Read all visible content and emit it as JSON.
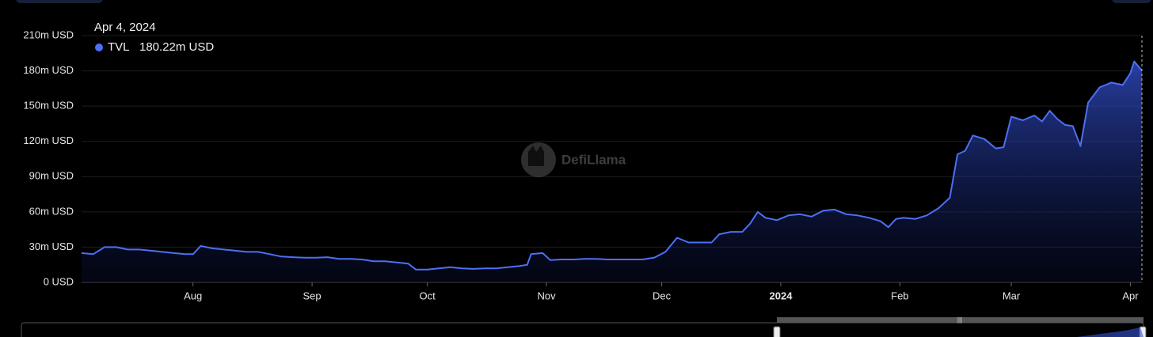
{
  "chart_data": {
    "type": "area",
    "watermark": "DefiLlama",
    "tooltip": {
      "date": "Apr 4, 2024",
      "value_label": "180.22m USD"
    },
    "x": [
      "2023-07-03",
      "2023-07-06",
      "2023-07-09",
      "2023-07-12",
      "2023-07-15",
      "2023-07-18",
      "2023-07-21",
      "2023-07-24",
      "2023-07-27",
      "2023-07-30",
      "2023-08-01",
      "2023-08-03",
      "2023-08-06",
      "2023-08-09",
      "2023-08-12",
      "2023-08-15",
      "2023-08-18",
      "2023-08-21",
      "2023-08-24",
      "2023-08-27",
      "2023-08-30",
      "2023-09-02",
      "2023-09-05",
      "2023-09-08",
      "2023-09-11",
      "2023-09-14",
      "2023-09-17",
      "2023-09-20",
      "2023-09-23",
      "2023-09-26",
      "2023-09-28",
      "2023-10-01",
      "2023-10-04",
      "2023-10-07",
      "2023-10-10",
      "2023-10-13",
      "2023-10-16",
      "2023-10-19",
      "2023-10-22",
      "2023-10-25",
      "2023-10-27",
      "2023-10-28",
      "2023-10-31",
      "2023-11-02",
      "2023-11-05",
      "2023-11-08",
      "2023-11-11",
      "2023-11-14",
      "2023-11-17",
      "2023-11-20",
      "2023-11-23",
      "2023-11-26",
      "2023-11-29",
      "2023-12-02",
      "2023-12-05",
      "2023-12-08",
      "2023-12-11",
      "2023-12-14",
      "2023-12-16",
      "2023-12-19",
      "2023-12-22",
      "2023-12-24",
      "2023-12-26",
      "2023-12-28",
      "2023-12-31",
      "2024-01-03",
      "2024-01-06",
      "2024-01-09",
      "2024-01-12",
      "2024-01-15",
      "2024-01-18",
      "2024-01-21",
      "2024-01-24",
      "2024-01-27",
      "2024-01-29",
      "2024-01-31",
      "2024-02-02",
      "2024-02-05",
      "2024-02-08",
      "2024-02-11",
      "2024-02-14",
      "2024-02-16",
      "2024-02-18",
      "2024-02-20",
      "2024-02-23",
      "2024-02-26",
      "2024-02-28",
      "2024-03-01",
      "2024-03-04",
      "2024-03-07",
      "2024-03-09",
      "2024-03-11",
      "2024-03-13",
      "2024-03-15",
      "2024-03-17",
      "2024-03-19",
      "2024-03-21",
      "2024-03-24",
      "2024-03-27",
      "2024-03-30",
      "2024-04-01",
      "2024-04-02",
      "2024-04-04"
    ],
    "series": [
      {
        "name": "TVL",
        "color": "#4d6ff5",
        "values": [
          25,
          24,
          30,
          30,
          28,
          28,
          27,
          26,
          25,
          24,
          24,
          31,
          29,
          28,
          27,
          26,
          26,
          24,
          22,
          21.5,
          21,
          21,
          21.5,
          20,
          20,
          19.5,
          18,
          18,
          17,
          16,
          11,
          11,
          12,
          13,
          12,
          11.5,
          12,
          12,
          13,
          14,
          15,
          24,
          25,
          19,
          19.5,
          19.5,
          20,
          20,
          19.5,
          19.5,
          19.5,
          19.5,
          21,
          26,
          38,
          34,
          34,
          34,
          41,
          43,
          43,
          50,
          60,
          55,
          53,
          57,
          58,
          56,
          61,
          62,
          58,
          57,
          55,
          52,
          47,
          54,
          55,
          54,
          57,
          63,
          72,
          109,
          112,
          125,
          122,
          114,
          115,
          141,
          138,
          142,
          137,
          146,
          139,
          134,
          133,
          116,
          153,
          166,
          170,
          168,
          178,
          188,
          180.22
        ]
      }
    ],
    "xlim": [
      "2023-07-03",
      "2024-04-04"
    ],
    "xticks": [
      {
        "value": "2023-08-01",
        "label": "Aug"
      },
      {
        "value": "2023-09-01",
        "label": "Sep"
      },
      {
        "value": "2023-10-01",
        "label": "Oct"
      },
      {
        "value": "2023-11-01",
        "label": "Nov"
      },
      {
        "value": "2023-12-01",
        "label": "Dec"
      },
      {
        "value": "2024-01-01",
        "label": "2024"
      },
      {
        "value": "2024-02-01",
        "label": "Feb"
      },
      {
        "value": "2024-03-01",
        "label": "Mar"
      },
      {
        "value": "2024-04-01",
        "label": "Apr"
      }
    ],
    "ylim": [
      0,
      210
    ],
    "yticks": [
      {
        "value": 0,
        "label": "0 USD"
      },
      {
        "value": 30,
        "label": "30m USD"
      },
      {
        "value": 60,
        "label": "60m USD"
      },
      {
        "value": 90,
        "label": "90m USD"
      },
      {
        "value": 120,
        "label": "120m USD"
      },
      {
        "value": 150,
        "label": "150m USD"
      },
      {
        "value": 180,
        "label": "180m USD"
      },
      {
        "value": 210,
        "label": "210m USD"
      }
    ],
    "grid": true
  }
}
